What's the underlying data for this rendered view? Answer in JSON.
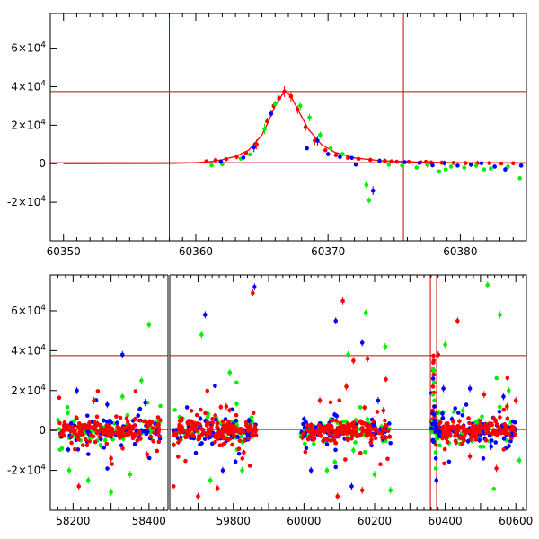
{
  "chart_data": [
    {
      "type": "scatter",
      "title": "",
      "xlabel": "",
      "ylabel": "",
      "xlim": [
        60349,
        60385
      ],
      "ylim": [
        -40000,
        78000
      ],
      "grid": false,
      "x_ticks": [
        60350,
        60360,
        60370,
        60380
      ],
      "x_tick_labels": [
        "60350",
        "60360",
        "60370",
        "60380"
      ],
      "y_ticks": [
        -20000,
        0,
        20000,
        40000,
        60000
      ],
      "y_tick_labels": [
        {
          "mantissa": "-2×10",
          "exp": "4"
        },
        {
          "mantissa": "0",
          "exp": ""
        },
        {
          "mantissa": "2×10",
          "exp": "4"
        },
        {
          "mantissa": "4×10",
          "exp": "4"
        },
        {
          "mantissa": "6×10",
          "exp": "4"
        }
      ],
      "reference_lines": {
        "horizontal": [
          37500,
          500
        ],
        "vertical": [
          60358,
          60375.7
        ]
      },
      "colors": {
        "red": "#ff0000",
        "green": "#00ee00",
        "blue": "#0000ff",
        "lines": "#cc0000"
      },
      "model_curve": {
        "x": [
          60350,
          60358,
          60360,
          60361,
          60362,
          60363,
          60364,
          60365,
          60365.5,
          60366,
          60366.5,
          60366.8,
          60367.2,
          60367.8,
          60368.5,
          60369.5,
          60370.5,
          60372,
          60374,
          60377,
          60380,
          60385
        ],
        "y": [
          0,
          100,
          500,
          1000,
          2000,
          3800,
          7000,
          15000,
          22000,
          30000,
          35500,
          37500,
          35000,
          27000,
          18000,
          10000,
          6000,
          3000,
          1500,
          800,
          500,
          300
        ]
      },
      "series": [
        {
          "color": "red",
          "points": [
            [
              60360.8,
              1200
            ],
            [
              60361.5,
              1800
            ],
            [
              60362.3,
              2300
            ],
            [
              60363.1,
              3600
            ],
            [
              60363.8,
              5600
            ],
            [
              60364.6,
              10000
            ],
            [
              60365.4,
              22000
            ],
            [
              60365.9,
              30000
            ],
            [
              60366.3,
              34000
            ],
            [
              60366.7,
              37500
            ],
            [
              60367.2,
              35000
            ],
            [
              60367.7,
              28000
            ],
            [
              60368.3,
              19000
            ],
            [
              60369.0,
              12000
            ],
            [
              60369.8,
              7000
            ],
            [
              60370.6,
              4500
            ],
            [
              60371.5,
              3000
            ],
            [
              60372.3,
              2500
            ],
            [
              60373.2,
              2000
            ],
            [
              60374.3,
              1500
            ],
            [
              60375.2,
              1000
            ],
            [
              60376.1,
              900
            ],
            [
              60377.0,
              700
            ],
            [
              60377.8,
              600
            ],
            [
              60378.6,
              500
            ],
            [
              60379.5,
              400
            ],
            [
              60380.4,
              300
            ],
            [
              60381.3,
              200
            ],
            [
              60382.2,
              300
            ],
            [
              60383.1,
              100
            ],
            [
              60384.0,
              200
            ],
            [
              60374.8,
              1200
            ],
            [
              60377.4,
              900
            ]
          ]
        },
        {
          "color": "green",
          "points": [
            [
              60361.2,
              -800
            ],
            [
              60362.0,
              -300
            ],
            [
              60363.4,
              2600
            ],
            [
              60364.1,
              4800
            ],
            [
              60365.2,
              18000
            ],
            [
              60366.0,
              31000
            ],
            [
              60367.9,
              30000
            ],
            [
              60368.6,
              24000
            ],
            [
              60369.4,
              15000
            ],
            [
              60370.2,
              8000
            ],
            [
              60371.1,
              5000
            ],
            [
              60372.9,
              -11000
            ],
            [
              60373.1,
              -19000
            ],
            [
              60374.6,
              -500
            ],
            [
              60375.6,
              -1000
            ],
            [
              60376.7,
              -2000
            ],
            [
              60377.5,
              -500
            ],
            [
              60378.4,
              -4000
            ],
            [
              60379.3,
              -1500
            ],
            [
              60380.3,
              -2000
            ],
            [
              60381.2,
              -1000
            ],
            [
              60382.3,
              -2500
            ],
            [
              60383.6,
              -1500
            ],
            [
              60384.5,
              -7500
            ],
            [
              60378.9,
              -3000
            ],
            [
              60381.8,
              -3000
            ]
          ]
        },
        {
          "color": "blue",
          "points": [
            [
              60361.9,
              1000
            ],
            [
              60363.6,
              3200
            ],
            [
              60364.4,
              8500
            ],
            [
              60365.7,
              26000
            ],
            [
              60368.4,
              8000
            ],
            [
              60369.2,
              12000
            ],
            [
              60370.0,
              5000
            ],
            [
              60370.9,
              3500
            ],
            [
              60371.8,
              3000
            ],
            [
              60373.4,
              -14000
            ],
            [
              60373.9,
              1500
            ],
            [
              60375.8,
              800
            ],
            [
              60376.9,
              400
            ],
            [
              60377.9,
              -800
            ],
            [
              60378.8,
              300
            ],
            [
              60379.8,
              -1000
            ],
            [
              60380.8,
              -500
            ],
            [
              60381.6,
              200
            ],
            [
              60382.6,
              -1500
            ],
            [
              60383.4,
              -3000
            ],
            [
              60384.6,
              -1000
            ],
            [
              60372.1,
              -500
            ]
          ]
        }
      ]
    },
    {
      "type": "scatter",
      "title": "",
      "xlabel": "",
      "ylabel": "",
      "xlim": [
        58140,
        60630
      ],
      "x_break": {
        "from": 58450,
        "to": 59620
      },
      "ylim": [
        -40000,
        78000
      ],
      "grid": false,
      "x_ticks": [
        58200,
        58400,
        59800,
        60000,
        60200,
        60400,
        60600
      ],
      "x_tick_labels": [
        "58200",
        "58400",
        "59800",
        "60000",
        "60200",
        "60400",
        "60600"
      ],
      "y_ticks": [
        -20000,
        0,
        20000,
        40000,
        60000
      ],
      "y_tick_labels": [
        {
          "mantissa": "-2×10",
          "exp": "4"
        },
        {
          "mantissa": "0",
          "exp": ""
        },
        {
          "mantissa": "2×10",
          "exp": "4"
        },
        {
          "mantissa": "4×10",
          "exp": "4"
        },
        {
          "mantissa": "6×10",
          "exp": "4"
        }
      ],
      "reference_lines": {
        "horizontal": [
          37500,
          500
        ],
        "vertical": [
          60358,
          60375.7
        ]
      },
      "colors": {
        "red": "#ff0000",
        "green": "#00ee00",
        "blue": "#0000ff",
        "lines": "#cc0000"
      },
      "seasons": [
        {
          "start": 58160,
          "end": 58430
        },
        {
          "start": 59630,
          "end": 59870
        },
        {
          "start": 59990,
          "end": 60245
        },
        {
          "start": 60355,
          "end": 60600
        }
      ],
      "outliers": [
        {
          "color": "red",
          "points": [
            [
              58215,
              -28000
            ],
            [
              58300,
              -14000
            ],
            [
              58395,
              -12000
            ],
            [
              58255,
              15000
            ],
            [
              59700,
              -33000
            ],
            [
              59755,
              -29000
            ],
            [
              59780,
              12000
            ],
            [
              59855,
              69000
            ],
            [
              60045,
              15000
            ],
            [
              60110,
              65000
            ],
            [
              60120,
              22000
            ],
            [
              60140,
              35000
            ],
            [
              60165,
              -30000
            ],
            [
              60180,
              36000
            ],
            [
              60095,
              -33000
            ],
            [
              60225,
              10000
            ],
            [
              60380,
              38000
            ],
            [
              60435,
              55000
            ],
            [
              60470,
              -13000
            ],
            [
              60510,
              18000
            ],
            [
              60545,
              -19000
            ],
            [
              60575,
              12000
            ],
            [
              60600,
              15000
            ]
          ]
        },
        {
          "color": "green",
          "points": [
            [
              58190,
              -20000
            ],
            [
              58240,
              -25000
            ],
            [
              58300,
              -31000
            ],
            [
              58350,
              -22000
            ],
            [
              58380,
              25000
            ],
            [
              58400,
              53000
            ],
            [
              58330,
              17000
            ],
            [
              59710,
              48000
            ],
            [
              59735,
              -25000
            ],
            [
              59790,
              29000
            ],
            [
              59825,
              -20000
            ],
            [
              60065,
              -20000
            ],
            [
              60125,
              38000
            ],
            [
              60140,
              -10000
            ],
            [
              60175,
              59000
            ],
            [
              60200,
              -22000
            ],
            [
              60230,
              42000
            ],
            [
              60245,
              -30000
            ],
            [
              60400,
              43000
            ],
            [
              60450,
              10000
            ],
            [
              60520,
              73000
            ],
            [
              60555,
              58000
            ],
            [
              60580,
              20000
            ],
            [
              60610,
              -15000
            ]
          ]
        },
        {
          "color": "blue",
          "points": [
            [
              58210,
              20000
            ],
            [
              58290,
              13000
            ],
            [
              58330,
              38000
            ],
            [
              58390,
              14000
            ],
            [
              59720,
              58000
            ],
            [
              59770,
              -20000
            ],
            [
              59860,
              72000
            ],
            [
              60020,
              -20000
            ],
            [
              60090,
              55000
            ],
            [
              60135,
              -28000
            ],
            [
              60165,
              44000
            ],
            [
              60210,
              15000
            ],
            [
              60375,
              -25000
            ],
            [
              60395,
              21000
            ],
            [
              60470,
              21000
            ],
            [
              60530,
              -8000
            ],
            [
              60565,
              17000
            ]
          ]
        }
      ]
    }
  ]
}
